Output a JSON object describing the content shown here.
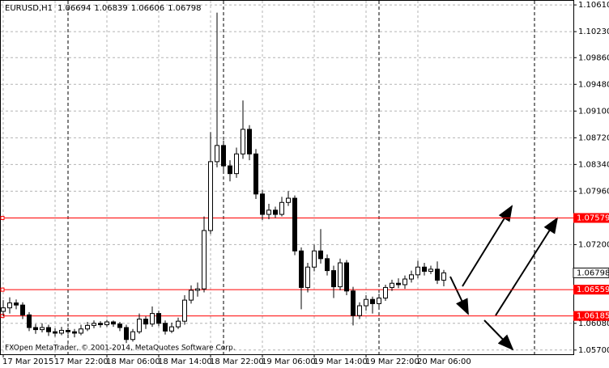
{
  "chart_data": {
    "type": "candlestick",
    "symbol": "EURUSD,H1",
    "categories": [
      "17 Mar 2015",
      null,
      null,
      null,
      null,
      null,
      null,
      null,
      "17 Mar 22:00",
      null,
      null,
      null,
      null,
      null,
      null,
      null,
      "18 Mar 06:00",
      null,
      null,
      null,
      null,
      null,
      null,
      null,
      "18 Mar 14:00",
      null,
      null,
      null,
      null,
      null,
      null,
      null,
      "18 Mar 22:00",
      null,
      null,
      null,
      null,
      null,
      null,
      null,
      "19 Mar 06:00",
      null,
      null,
      null,
      null,
      null,
      null,
      null,
      "19 Mar 14:00",
      null,
      null,
      null,
      null,
      null,
      null,
      null,
      "19 Mar 22:00",
      null,
      null,
      null,
      null,
      null,
      null,
      null,
      "20 Mar 06:00",
      null,
      null,
      null,
      null
    ],
    "open": [
      1.0625,
      1.063,
      1.0637,
      1.0634,
      1.062,
      1.0602,
      1.0599,
      1.0602,
      1.0596,
      1.0594,
      1.0598,
      1.0596,
      1.0594,
      1.06,
      1.0605,
      1.0608,
      1.0606,
      1.061,
      1.0607,
      1.0602,
      1.0585,
      1.0596,
      1.0614,
      1.0607,
      1.0622,
      1.0608,
      1.0597,
      1.0603,
      1.0611,
      1.0641,
      1.0655,
      1.0657,
      1.074,
      1.0838,
      1.0861,
      1.0832,
      1.0821,
      1.0849,
      1.0884,
      1.0849,
      1.0792,
      1.0763,
      1.0769,
      1.0763,
      1.078,
      1.0786,
      1.0711,
      1.0659,
      1.0688,
      1.0711,
      1.07,
      1.0683,
      1.066,
      1.0694,
      1.0654,
      1.0619,
      1.0633,
      1.0642,
      1.0636,
      1.0644,
      1.0659,
      1.0665,
      1.0663,
      1.0671,
      1.0677,
      1.0688,
      1.0682,
      1.0685,
      1.06694
    ],
    "high": [
      1.0641,
      1.0645,
      1.0642,
      1.0638,
      1.0624,
      1.0607,
      1.0608,
      1.0606,
      1.0601,
      1.0603,
      1.0602,
      1.06,
      1.0606,
      1.061,
      1.0612,
      1.0611,
      1.0613,
      1.0612,
      1.061,
      1.0606,
      1.06,
      1.0622,
      1.0618,
      1.0632,
      1.0626,
      1.0612,
      1.0609,
      1.0616,
      1.0648,
      1.0662,
      1.0666,
      1.076,
      1.088,
      1.105,
      1.0868,
      1.084,
      1.0858,
      1.0925,
      1.089,
      1.0856,
      1.0798,
      1.0778,
      1.0774,
      1.0788,
      1.0796,
      1.079,
      1.0716,
      1.0694,
      1.072,
      1.0742,
      1.0706,
      1.069,
      1.07,
      1.0698,
      1.066,
      1.0638,
      1.0648,
      1.0646,
      1.065,
      1.0663,
      1.067,
      1.0672,
      1.0676,
      1.0683,
      1.0697,
      1.0694,
      1.069,
      1.0696,
      1.06839
    ],
    "low": [
      1.0618,
      1.0622,
      1.0628,
      1.0614,
      1.0597,
      1.0593,
      1.0595,
      1.059,
      1.0589,
      1.0591,
      1.0592,
      1.0588,
      1.0591,
      1.0597,
      1.0601,
      1.0602,
      1.0603,
      1.0603,
      1.0597,
      1.058,
      1.0582,
      1.0593,
      1.06,
      1.0603,
      1.0604,
      1.0592,
      1.0594,
      1.06,
      1.0606,
      1.0636,
      1.0646,
      1.0652,
      1.0735,
      1.083,
      1.0822,
      1.081,
      1.0815,
      1.0842,
      1.084,
      1.0785,
      1.0755,
      1.0756,
      1.0758,
      1.076,
      1.0775,
      1.0705,
      1.0628,
      1.0652,
      1.0682,
      1.0693,
      1.0676,
      1.0644,
      1.0655,
      1.0648,
      1.0605,
      1.0614,
      1.0626,
      1.0622,
      1.063,
      1.064,
      1.0654,
      1.0658,
      1.0657,
      1.0666,
      1.0672,
      1.0676,
      1.0678,
      1.0664,
      1.06606
    ],
    "close": [
      1.063,
      1.0637,
      1.0634,
      1.062,
      1.0602,
      1.0599,
      1.0602,
      1.0596,
      1.0594,
      1.0598,
      1.0596,
      1.0594,
      1.06,
      1.0605,
      1.0608,
      1.0606,
      1.061,
      1.0607,
      1.0602,
      1.0585,
      1.0596,
      1.0614,
      1.0607,
      1.0622,
      1.0608,
      1.0597,
      1.0603,
      1.0611,
      1.0641,
      1.0655,
      1.0657,
      1.074,
      1.0838,
      1.0861,
      1.0832,
      1.0821,
      1.0849,
      1.0884,
      1.0849,
      1.0792,
      1.0763,
      1.0769,
      1.0763,
      1.078,
      1.0786,
      1.0711,
      1.0659,
      1.0688,
      1.0711,
      1.07,
      1.0683,
      1.066,
      1.0694,
      1.0654,
      1.0619,
      1.0633,
      1.0642,
      1.0636,
      1.0644,
      1.0659,
      1.0665,
      1.0663,
      1.0671,
      1.0677,
      1.0688,
      1.0682,
      1.0685,
      1.06694,
      1.06798
    ],
    "ylim": [
      1.0564,
      1.1068
    ],
    "yticks": [
      {
        "value": 1.1061,
        "label": "1.10610"
      },
      {
        "value": 1.1023,
        "label": "1.10230"
      },
      {
        "value": 1.0986,
        "label": "1.09860"
      },
      {
        "value": 1.0948,
        "label": "1.09480"
      },
      {
        "value": 1.091,
        "label": "1.09100"
      },
      {
        "value": 1.0872,
        "label": "1.08720"
      },
      {
        "value": 1.0834,
        "label": "1.08340"
      },
      {
        "value": 1.0796,
        "label": "1.07960"
      },
      {
        "value": 1.072,
        "label": "1.07200"
      },
      {
        "value": 1.0608,
        "label": "1.06080"
      },
      {
        "value": 1.057,
        "label": "1.05700"
      }
    ],
    "hlines": [
      1.07579,
      1.06559,
      1.06185
    ],
    "hline_color": "#ff0000",
    "grid": true,
    "footer": "FXOpen MetaTrader, © 2001-2014, MetaQuotes Software Corp."
  }
}
